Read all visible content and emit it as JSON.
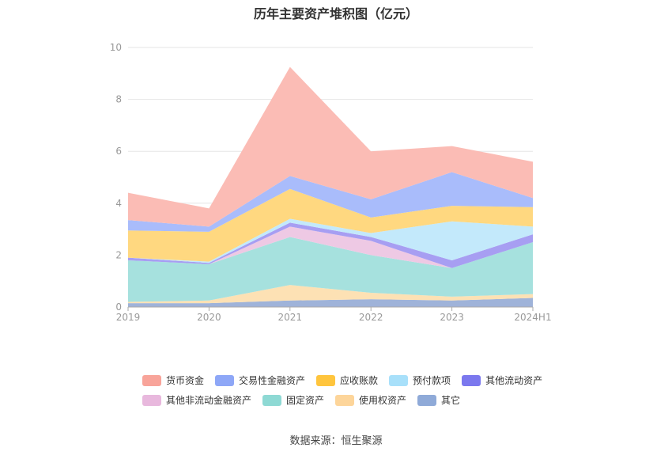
{
  "title": "历年主要资产堆积图（亿元）",
  "source": "数据来源：恒生聚源",
  "chart_data": {
    "type": "area",
    "stacked": true,
    "x": [
      "2019",
      "2020",
      "2021",
      "2022",
      "2023",
      "2024H1"
    ],
    "ylim": [
      0,
      10
    ],
    "yticks": [
      0,
      2,
      4,
      6,
      8,
      10
    ],
    "grid": true,
    "legend_position": "bottom",
    "series": [
      {
        "name": "其它",
        "color": "#9fb3d9",
        "values": [
          0.15,
          0.15,
          0.25,
          0.3,
          0.25,
          0.35
        ]
      },
      {
        "name": "使用权资产",
        "color": "#fde1b4",
        "values": [
          0.05,
          0.1,
          0.6,
          0.25,
          0.15,
          0.15
        ]
      },
      {
        "name": "固定资产",
        "color": "#a6e1de",
        "values": [
          1.6,
          1.4,
          1.85,
          1.45,
          1.1,
          2.0
        ]
      },
      {
        "name": "其他非流动金融资产",
        "color": "#eec9e4",
        "values": [
          0.0,
          0.0,
          0.4,
          0.55,
          0.0,
          0.0
        ]
      },
      {
        "name": "其他流动资产",
        "color": "#a79ef2",
        "values": [
          0.1,
          0.05,
          0.15,
          0.15,
          0.3,
          0.3
        ]
      },
      {
        "name": "预付款项",
        "color": "#c3e9fb",
        "values": [
          0.0,
          0.05,
          0.15,
          0.15,
          1.5,
          0.3
        ]
      },
      {
        "name": "应收账款",
        "color": "#ffd880",
        "values": [
          1.05,
          1.15,
          1.15,
          0.6,
          0.6,
          0.75
        ]
      },
      {
        "name": "交易性金融资产",
        "color": "#a9bcfb",
        "values": [
          0.4,
          0.2,
          0.5,
          0.7,
          1.3,
          0.35
        ]
      },
      {
        "name": "货币资金",
        "color": "#fbbcb5",
        "values": [
          1.05,
          0.7,
          4.2,
          1.85,
          1.0,
          1.4
        ]
      }
    ]
  },
  "legend": {
    "row1": [
      {
        "name": "货币资金",
        "color": "#f8a49a"
      },
      {
        "name": "交易性金融资产",
        "color": "#8ea7f7"
      },
      {
        "name": "应收账款",
        "color": "#ffc53d"
      },
      {
        "name": "预付款项",
        "color": "#a8e0fa"
      },
      {
        "name": "其他流动资产",
        "color": "#7b78ee"
      }
    ],
    "row2": [
      {
        "name": "其他非流动金融资产",
        "color": "#e8b8dd"
      },
      {
        "name": "固定资产",
        "color": "#8ed9d4"
      },
      {
        "name": "使用权资产",
        "color": "#fdd59a"
      },
      {
        "name": "其它",
        "color": "#8faad8"
      }
    ]
  }
}
